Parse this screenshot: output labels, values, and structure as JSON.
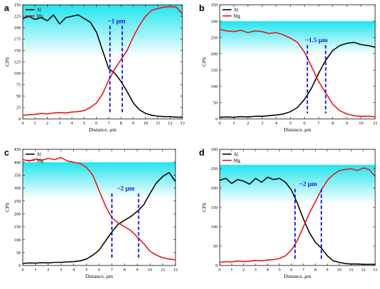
{
  "colors": {
    "al": "#000000",
    "mg": "#ee1111",
    "marker": "#1f1fdd",
    "band_top": "#22e4ee",
    "band_bottom": "#ffffff"
  },
  "chart_data": [
    {
      "panel": "a",
      "type": "line",
      "xlabel": "Distance, μm",
      "ylabel": "CPS",
      "xlim": [
        0,
        13
      ],
      "ylim": [
        0,
        250
      ],
      "xticks": [
        0,
        1,
        2,
        3,
        4,
        5,
        6,
        7,
        8,
        9,
        10,
        11,
        12,
        13
      ],
      "yticks": [
        0,
        25,
        50,
        75,
        100,
        125,
        150,
        175,
        200,
        225,
        250
      ],
      "band": [
        135,
        250
      ],
      "annotation": "~1 μm",
      "annotation_x": 7.65,
      "annotation_y": 210,
      "markers_x": [
        7.1,
        8.1
      ],
      "legend_loc": "top-left",
      "series": [
        {
          "name": "Al",
          "color": "#000000",
          "x": [
            0,
            0.5,
            1,
            1.5,
            2,
            2.5,
            3,
            3.5,
            4,
            4.5,
            5,
            5.5,
            6,
            6.5,
            7,
            7.5,
            8,
            8.5,
            9,
            9.5,
            10,
            10.5,
            11,
            11.5,
            12,
            12.5,
            13
          ],
          "y": [
            220,
            225,
            218,
            222,
            215,
            228,
            208,
            222,
            225,
            228,
            220,
            212,
            190,
            150,
            110,
            100,
            82,
            60,
            35,
            20,
            12,
            8,
            6,
            5,
            5,
            4,
            4
          ]
        },
        {
          "name": "Mg",
          "color": "#ee1111",
          "x": [
            0,
            0.5,
            1,
            1.5,
            2,
            2.5,
            3,
            3.5,
            4,
            4.5,
            5,
            5.5,
            6,
            6.5,
            7,
            7.5,
            8,
            8.5,
            9,
            9.5,
            10,
            10.5,
            11,
            11.5,
            12,
            12.5,
            13
          ],
          "y": [
            8,
            9,
            10,
            12,
            11,
            13,
            14,
            13,
            15,
            16,
            18,
            25,
            35,
            55,
            85,
            110,
            130,
            150,
            180,
            205,
            225,
            238,
            242,
            245,
            246,
            245,
            230
          ]
        }
      ]
    },
    {
      "panel": "b",
      "type": "line",
      "xlabel": "Distance, μm",
      "ylabel": "CPS",
      "xlim": [
        0,
        11
      ],
      "ylim": [
        0,
        350
      ],
      "xticks": [
        0,
        1,
        2,
        3,
        4,
        5,
        6,
        7,
        8,
        9,
        10,
        11
      ],
      "yticks": [
        0,
        50,
        100,
        150,
        200,
        250,
        300,
        350
      ],
      "band": [
        195,
        300
      ],
      "annotation": "~1.5 μm",
      "annotation_x": 6.85,
      "annotation_y": 235,
      "markers_x": [
        6.2,
        7.5
      ],
      "legend_loc": "top-left",
      "series": [
        {
          "name": "Al",
          "color": "#000000",
          "x": [
            0,
            0.5,
            1,
            1.5,
            2,
            2.5,
            3,
            3.5,
            4,
            4.5,
            5,
            5.5,
            6,
            6.5,
            7,
            7.5,
            8,
            8.5,
            9,
            9.5,
            10,
            10.5,
            11
          ],
          "y": [
            5,
            6,
            5,
            7,
            6,
            8,
            8,
            10,
            12,
            15,
            22,
            35,
            60,
            95,
            140,
            180,
            210,
            225,
            232,
            235,
            228,
            225,
            220
          ]
        },
        {
          "name": "Mg",
          "color": "#ee1111",
          "x": [
            0,
            0.5,
            1,
            1.5,
            2,
            2.5,
            3,
            3.5,
            4,
            4.5,
            5,
            5.5,
            6,
            6.5,
            7,
            7.5,
            8,
            8.5,
            9,
            9.5,
            10,
            10.5,
            11
          ],
          "y": [
            275,
            270,
            268,
            272,
            265,
            270,
            268,
            262,
            265,
            258,
            248,
            235,
            205,
            160,
            115,
            80,
            45,
            25,
            15,
            10,
            8,
            8,
            7
          ]
        }
      ]
    },
    {
      "panel": "c",
      "type": "line",
      "xlabel": "Distance, μm",
      "ylabel": "CPS",
      "xlim": [
        0,
        12
      ],
      "ylim": [
        0,
        450
      ],
      "xticks": [
        0,
        1,
        2,
        3,
        4,
        5,
        6,
        7,
        8,
        9,
        10,
        11,
        12
      ],
      "yticks": [
        0,
        50,
        100,
        150,
        200,
        250,
        300,
        350,
        400,
        450
      ],
      "band": [
        260,
        400
      ],
      "annotation": "~2 μm",
      "annotation_x": 8.1,
      "annotation_y": 290,
      "markers_x": [
        7.0,
        9.1
      ],
      "legend_loc": "top-left",
      "series": [
        {
          "name": "Al",
          "color": "#000000",
          "x": [
            0,
            0.5,
            1,
            1.5,
            2,
            2.5,
            3,
            3.5,
            4,
            4.5,
            5,
            5.5,
            6,
            6.5,
            7,
            7.5,
            8,
            8.5,
            9,
            9.5,
            10,
            10.5,
            11,
            11.5,
            12
          ],
          "y": [
            8,
            10,
            9,
            11,
            10,
            12,
            12,
            14,
            15,
            18,
            25,
            40,
            60,
            95,
            130,
            160,
            175,
            190,
            210,
            235,
            280,
            320,
            345,
            360,
            325
          ]
        },
        {
          "name": "Mg",
          "color": "#ee1111",
          "x": [
            0,
            0.5,
            1,
            1.5,
            2,
            2.5,
            3,
            3.5,
            4,
            4.5,
            5,
            5.5,
            6,
            6.5,
            7,
            7.5,
            8,
            8.5,
            9,
            9.5,
            10,
            10.5,
            11,
            11.5,
            12
          ],
          "y": [
            410,
            405,
            412,
            408,
            415,
            410,
            418,
            405,
            400,
            395,
            380,
            350,
            290,
            230,
            185,
            165,
            150,
            135,
            110,
            85,
            55,
            40,
            30,
            25,
            22
          ]
        }
      ]
    },
    {
      "panel": "d",
      "type": "line",
      "xlabel": "Distance, μm",
      "ylabel": "CPS",
      "xlim": [
        0,
        13
      ],
      "ylim": [
        0,
        300
      ],
      "xticks": [
        0,
        1,
        2,
        3,
        4,
        5,
        6,
        7,
        8,
        9,
        10,
        11,
        12,
        13
      ],
      "yticks": [
        0,
        50,
        100,
        150,
        200,
        250,
        300
      ],
      "band": [
        160,
        260
      ],
      "annotation": "~2 μm",
      "annotation_x": 7.4,
      "annotation_y": 205,
      "markers_x": [
        6.3,
        8.5
      ],
      "legend_loc": "top-left",
      "series": [
        {
          "name": "Al",
          "color": "#000000",
          "x": [
            0,
            0.5,
            1,
            1.5,
            2,
            2.5,
            3,
            3.5,
            4,
            4.5,
            5,
            5.5,
            6,
            6.5,
            7,
            7.5,
            8,
            8.5,
            9,
            9.5,
            10,
            10.5,
            11,
            11.5,
            12,
            12.5,
            13
          ],
          "y": [
            220,
            225,
            212,
            222,
            218,
            210,
            225,
            215,
            228,
            222,
            225,
            215,
            195,
            160,
            120,
            85,
            60,
            45,
            25,
            12,
            8,
            5,
            4,
            4,
            3,
            3,
            3
          ]
        },
        {
          "name": "Mg",
          "color": "#ee1111",
          "x": [
            0,
            0.5,
            1,
            1.5,
            2,
            2.5,
            3,
            3.5,
            4,
            4.5,
            5,
            5.5,
            6,
            6.5,
            7,
            7.5,
            8,
            8.5,
            9,
            9.5,
            10,
            10.5,
            11,
            11.5,
            12,
            12.5,
            13
          ],
          "y": [
            8,
            10,
            9,
            12,
            10,
            11,
            13,
            12,
            14,
            15,
            18,
            25,
            40,
            65,
            100,
            135,
            165,
            195,
            220,
            235,
            245,
            248,
            250,
            245,
            252,
            248,
            230
          ]
        }
      ]
    }
  ]
}
